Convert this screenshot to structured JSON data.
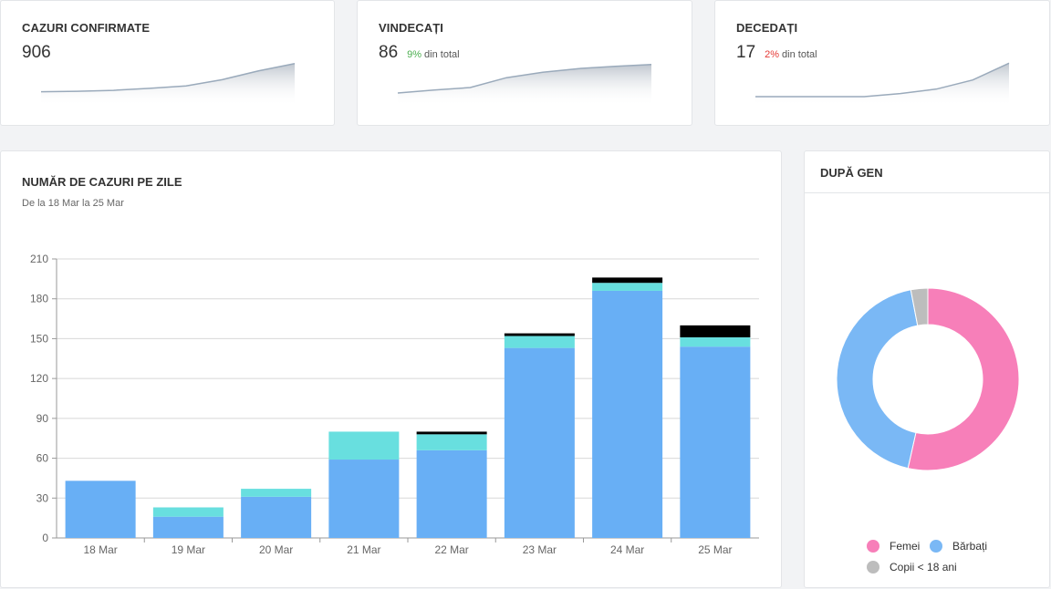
{
  "stats": [
    {
      "title": "CAZURI CONFIRMATE",
      "value": "906",
      "pct": "",
      "pct_suffix": "",
      "pct_color": ""
    },
    {
      "title": "VINDECAȚI",
      "value": "86",
      "pct": "9%",
      "pct_suffix": "din total",
      "pct_color": "#4caf50"
    },
    {
      "title": "DECEDAȚI",
      "value": "17",
      "pct": "2%",
      "pct_suffix": "din total",
      "pct_color": "#e53935"
    }
  ],
  "main_chart": {
    "title": "NUMĂR DE CAZURI PE ZILE",
    "subtitle": "De la 18 Mar la 25 Mar"
  },
  "gender_card": {
    "title": "DUPĂ GEN",
    "legend": [
      {
        "label": "Femei",
        "color": "#f77fb9"
      },
      {
        "label": "Bărbați",
        "color": "#7ab8f5"
      },
      {
        "label": "Copii < 18 ani",
        "color": "#bdbdbd"
      }
    ]
  },
  "chart_data": [
    {
      "type": "bar",
      "stacked": true,
      "title": "NUMĂR DE CAZURI PE ZILE",
      "subtitle": "De la 18 Mar la 25 Mar",
      "categories": [
        "18 Mar",
        "19 Mar",
        "20 Mar",
        "21 Mar",
        "22 Mar",
        "23 Mar",
        "24 Mar",
        "25 Mar"
      ],
      "series": [
        {
          "values": [
            43,
            16,
            31,
            59,
            66,
            143,
            186,
            144
          ],
          "color": "#68aff5"
        },
        {
          "values": [
            0,
            7,
            6,
            21,
            12,
            9,
            6,
            7
          ],
          "color": "#68dfdf"
        },
        {
          "values": [
            0,
            0,
            0,
            0,
            2,
            2,
            4,
            9
          ],
          "color": "#000000"
        }
      ],
      "yticks": [
        0,
        30,
        60,
        90,
        120,
        150,
        180,
        210
      ],
      "ylim": [
        0,
        210
      ],
      "grid": true
    },
    {
      "type": "pie",
      "donut": true,
      "title": "DUPĂ GEN",
      "categories": [
        "Femei",
        "Bărbați",
        "Copii < 18 ani"
      ],
      "values": [
        53.5,
        43.5,
        3
      ],
      "colors": [
        "#f77fb9",
        "#7ab8f5",
        "#bdbdbd"
      ]
    },
    {
      "type": "area",
      "title": "CAZURI CONFIRMATE",
      "values": [
        1,
        1.1,
        1.3,
        1.7,
        2.2,
        3.5,
        5.3,
        6.8
      ],
      "ylim": [
        0,
        7.5
      ]
    },
    {
      "type": "area",
      "title": "VINDECAȚI",
      "values": [
        1,
        1.8,
        2.5,
        5.2,
        6.7,
        7.7,
        8.3,
        8.8
      ],
      "ylim": [
        0,
        10
      ]
    },
    {
      "type": "area",
      "title": "DECEDAȚI",
      "values": [
        0,
        0,
        0,
        0,
        1,
        2.5,
        5.5,
        11
      ],
      "ylim": [
        0,
        12
      ]
    }
  ]
}
